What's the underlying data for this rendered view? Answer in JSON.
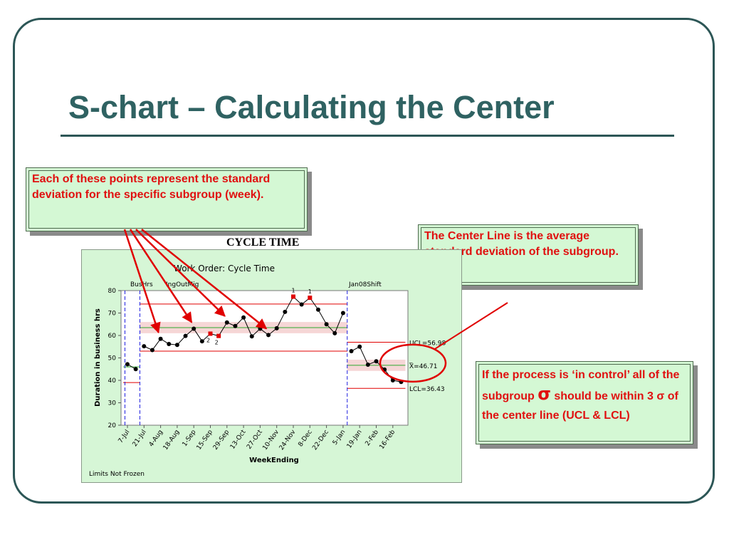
{
  "slide": {
    "title": "S-chart – Calculating the Center"
  },
  "callouts": {
    "points_text": "Each of these points represent the standard deviation for the specific subgroup (week).",
    "center_text": "The Center Line is the average standard deviation of the subgroup.",
    "control_text_1": "If the process is ‘in control’ all of the subgroup ",
    "control_sigma": "σ",
    "control_text_2": " should be within 3 σ of the center line (UCL & LCL)"
  },
  "chart_heading": "CYCLE TIME",
  "colors": {
    "title": "#2f6262",
    "callout_text": "#e01010",
    "callout_bg": "#d4f8d4",
    "limit_line": "#e00000",
    "center_line": "#2fa82f",
    "band": "#f6d6d6",
    "shift_line": "#2020e0",
    "point": "#000000",
    "flag_point": "#e00000",
    "arrow": "#e00000"
  },
  "chart_data": {
    "type": "line",
    "title": "Work Order: Cycle Time",
    "xlabel": "WeekEnding",
    "ylabel": "Duration in business hrs",
    "ylim": [
      20,
      80
    ],
    "y_ticks": [
      20,
      30,
      40,
      50,
      60,
      70,
      80
    ],
    "x_ticks": [
      "7-Jul",
      "21-Jul",
      "4-Aug",
      "18-Aug",
      "1-Sep",
      "15-Sep",
      "29-Sep",
      "13-Oct",
      "27-Oct",
      "10-Nov",
      "24-Nov",
      "8-Dec",
      "22-Dec",
      "5-Jan",
      "19-Jan",
      "2-Feb",
      "16-Feb"
    ],
    "x_count": 33,
    "phase_labels": [
      "BusHrs",
      "IngOutMig",
      "Jan08Shift"
    ],
    "footer": "Limits Not Frozen",
    "points": [
      {
        "x": 0,
        "y": 47.2
      },
      {
        "x": 1,
        "y": 45.0
      },
      {
        "x": 2,
        "y": 55.2
      },
      {
        "x": 3,
        "y": 53.5
      },
      {
        "x": 4,
        "y": 58.5
      },
      {
        "x": 5,
        "y": 56.2
      },
      {
        "x": 6,
        "y": 55.8
      },
      {
        "x": 7,
        "y": 59.8
      },
      {
        "x": 8,
        "y": 63.0
      },
      {
        "x": 9,
        "y": 57.4
      },
      {
        "x": 10,
        "y": 60.8,
        "flag": "2"
      },
      {
        "x": 11,
        "y": 59.8,
        "flag": "2"
      },
      {
        "x": 12,
        "y": 65.8
      },
      {
        "x": 13,
        "y": 64.2
      },
      {
        "x": 14,
        "y": 68.0
      },
      {
        "x": 15,
        "y": 59.6
      },
      {
        "x": 16,
        "y": 63.0
      },
      {
        "x": 17,
        "y": 60.2
      },
      {
        "x": 18,
        "y": 63.2
      },
      {
        "x": 19,
        "y": 70.5
      },
      {
        "x": 20,
        "y": 77.3,
        "flag": "1"
      },
      {
        "x": 21,
        "y": 73.8
      },
      {
        "x": 22,
        "y": 76.8,
        "flag": "1"
      },
      {
        "x": 23,
        "y": 71.5
      },
      {
        "x": 24,
        "y": 65.0
      },
      {
        "x": 25,
        "y": 61.0
      },
      {
        "x": 26,
        "y": 70.0
      },
      {
        "x": 27,
        "y": 53.0
      },
      {
        "x": 28,
        "y": 55.0
      },
      {
        "x": 29,
        "y": 47.0
      },
      {
        "x": 30,
        "y": 48.5
      },
      {
        "x": 31,
        "y": 44.8
      },
      {
        "x": 32,
        "y": 40.0
      },
      {
        "x": 33,
        "y": 39.3
      }
    ],
    "segments": [
      {
        "from": 0,
        "to": 1,
        "ucl": null,
        "cl": 46.0,
        "lcl": 39.0
      },
      {
        "from": 2,
        "to": 26,
        "ucl": 74.0,
        "cl": 63.5,
        "lcl": 53.0
      },
      {
        "from": 27,
        "to": 33,
        "ucl": 56.98,
        "cl": 46.71,
        "lcl": 36.43
      }
    ],
    "shifts": [
      -0.3,
      1.5,
      26.5
    ],
    "annotations": {
      "ucl_label": "UCL=56.98",
      "cl_label": "X=46.71",
      "cl_bar": "_",
      "lcl_label": "LCL=36.43"
    }
  }
}
